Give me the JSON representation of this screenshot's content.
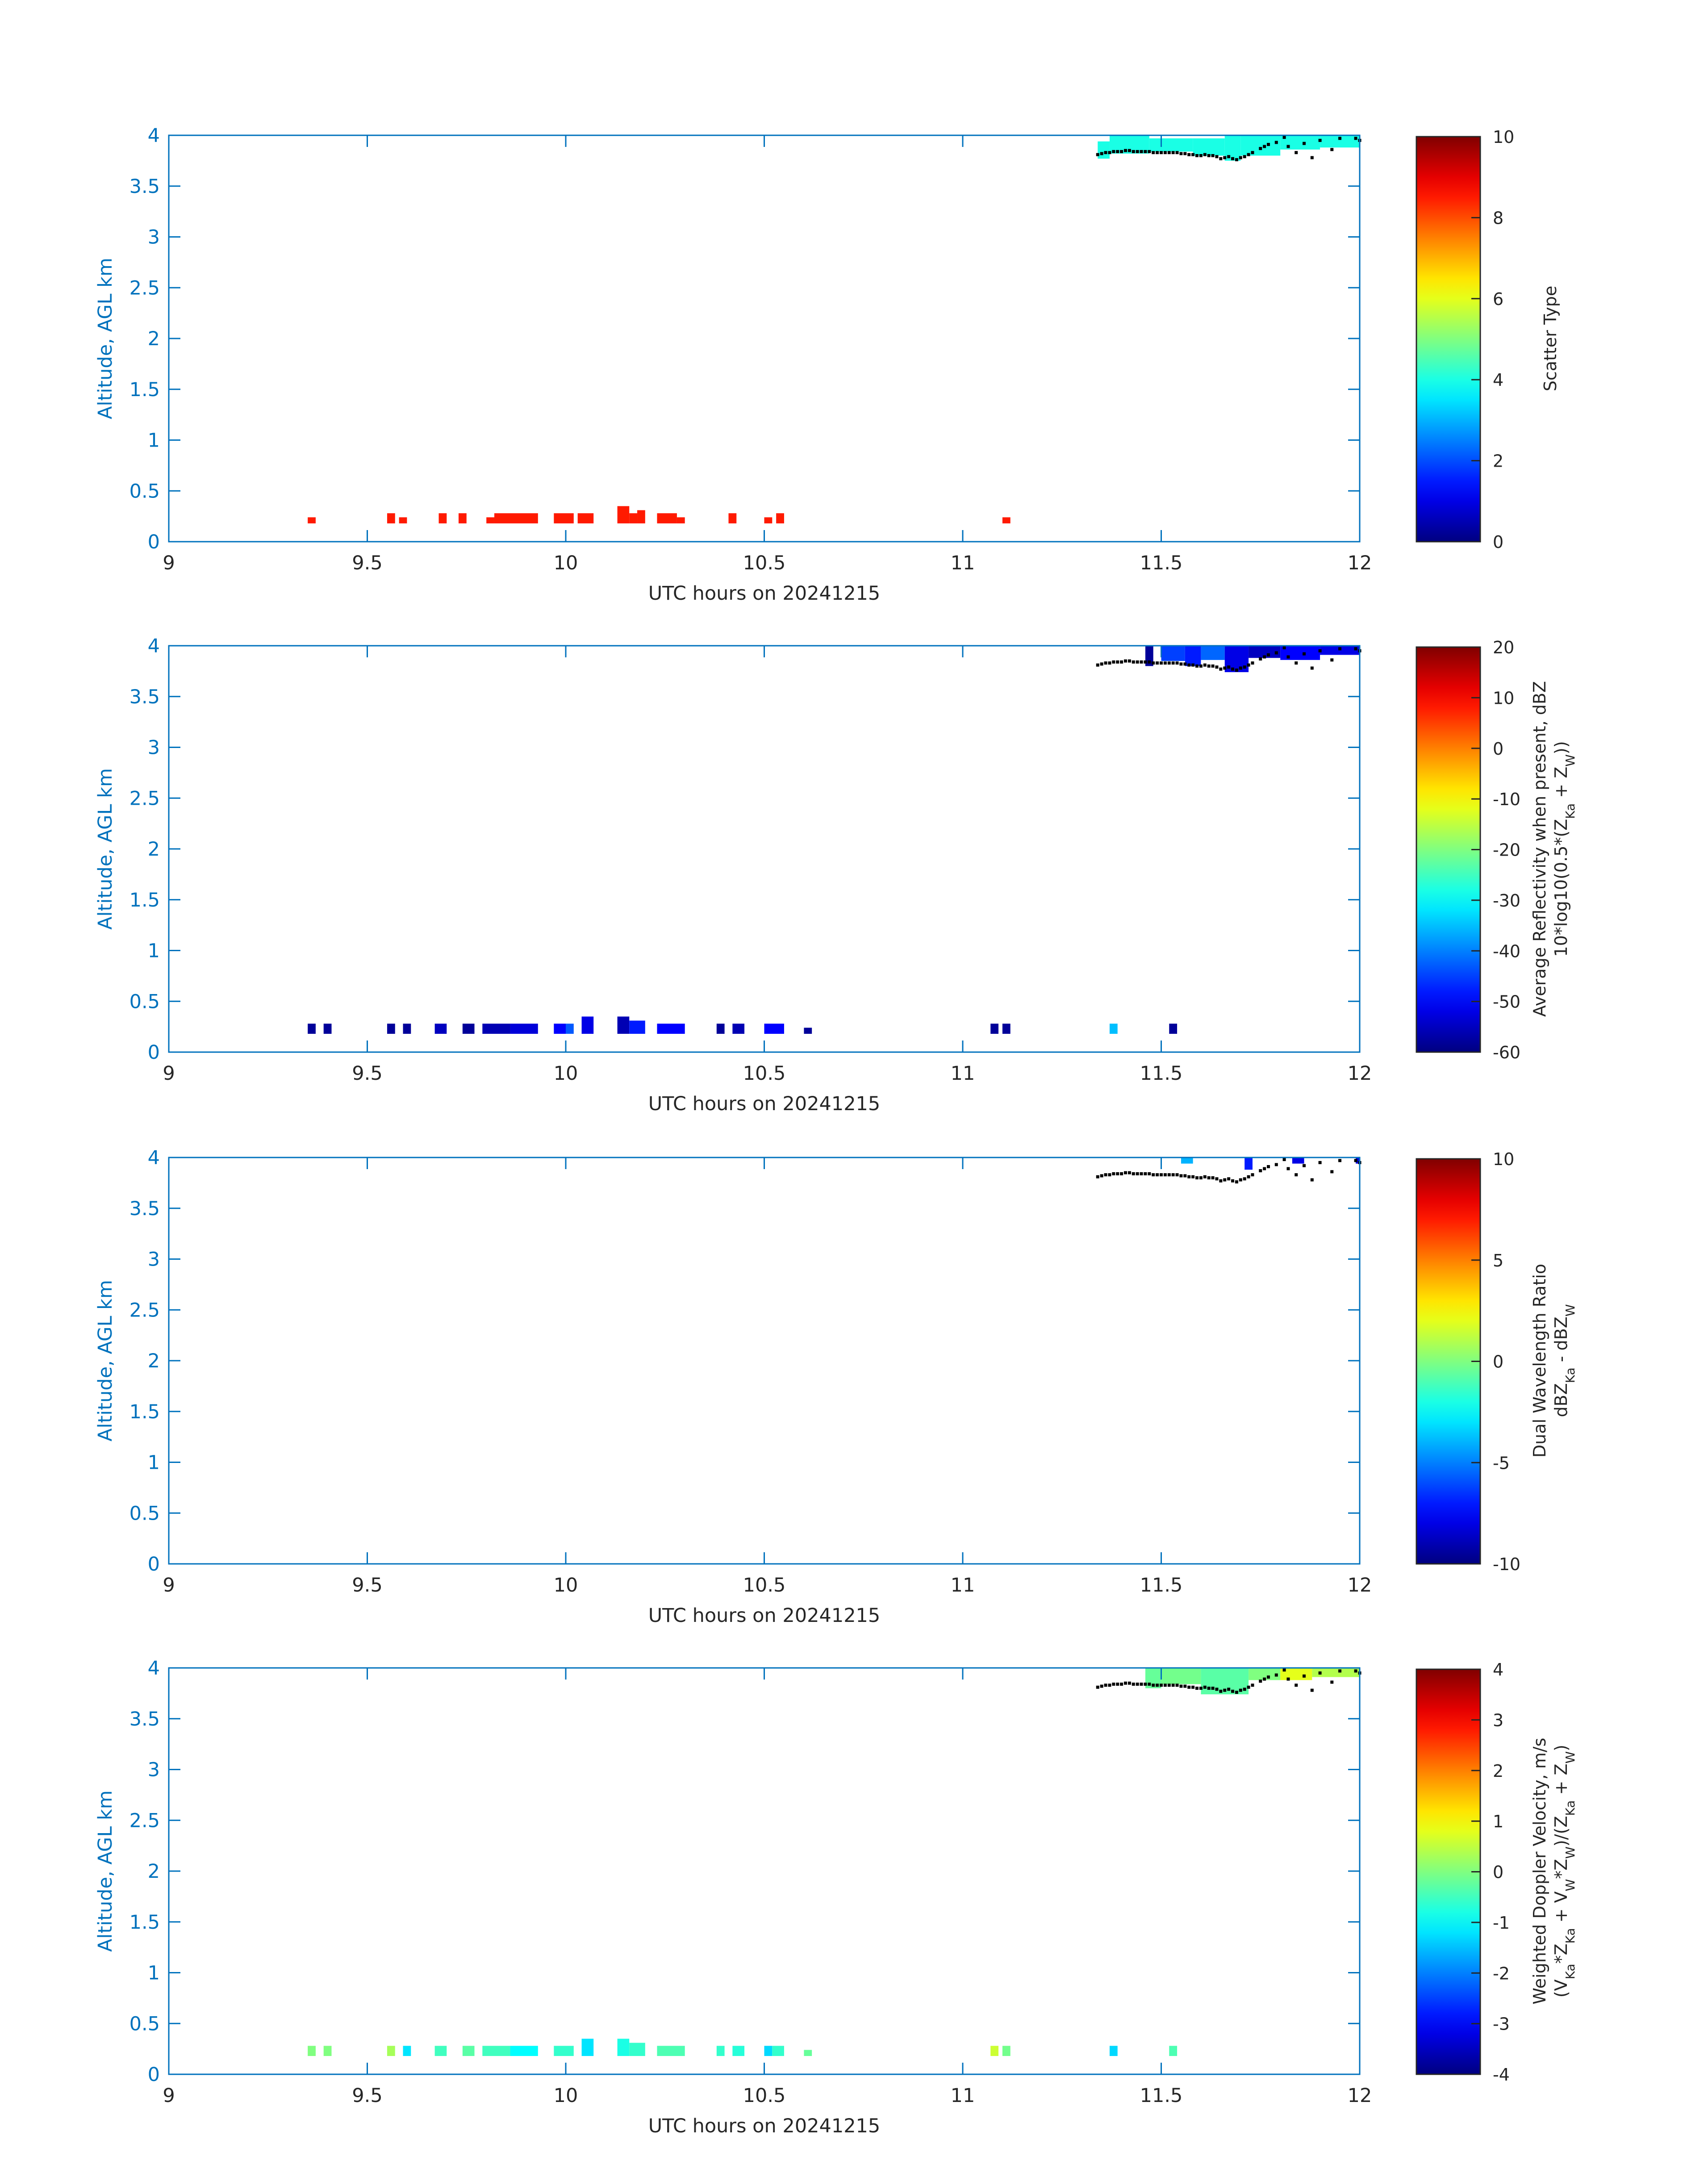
{
  "figure": {
    "date_label": "UTC hours on 20241215"
  },
  "colors": {
    "axis": "#0072BD",
    "text": "#262626",
    "marker": "#000000"
  },
  "chart_data": [
    {
      "type": "heatmap",
      "ylabel": "Altitude, AGL km",
      "xlabel": "UTC hours on 20241215",
      "xlim": [
        9,
        12
      ],
      "ylim": [
        0,
        4
      ],
      "xticks": [
        "9",
        "9.5",
        "10",
        "10.5",
        "11",
        "11.5",
        "12"
      ],
      "yticks": [
        "0",
        "0.5",
        "1",
        "1.5",
        "2",
        "2.5",
        "3",
        "3.5",
        "4"
      ],
      "colorbar": {
        "label": [
          "Scatter Type"
        ],
        "clim": [
          0,
          10
        ],
        "ticks": [
          "0",
          "2",
          "4",
          "6",
          "8",
          "10"
        ],
        "colormap": "jet"
      },
      "cells": [
        {
          "x0": 9.35,
          "x1": 9.37,
          "y0": 0.18,
          "y1": 0.24,
          "v": 8.5
        },
        {
          "x0": 9.55,
          "x1": 9.57,
          "y0": 0.18,
          "y1": 0.28,
          "v": 8.5
        },
        {
          "x0": 9.58,
          "x1": 9.6,
          "y0": 0.18,
          "y1": 0.24,
          "v": 8.5
        },
        {
          "x0": 9.68,
          "x1": 9.7,
          "y0": 0.18,
          "y1": 0.28,
          "v": 8.5
        },
        {
          "x0": 9.73,
          "x1": 9.75,
          "y0": 0.18,
          "y1": 0.28,
          "v": 8.5
        },
        {
          "x0": 9.8,
          "x1": 9.82,
          "y0": 0.18,
          "y1": 0.24,
          "v": 8.5
        },
        {
          "x0": 9.82,
          "x1": 9.93,
          "y0": 0.18,
          "y1": 0.28,
          "v": 8.5
        },
        {
          "x0": 9.97,
          "x1": 10.02,
          "y0": 0.18,
          "y1": 0.28,
          "v": 8.5
        },
        {
          "x0": 10.03,
          "x1": 10.07,
          "y0": 0.18,
          "y1": 0.28,
          "v": 8.5
        },
        {
          "x0": 10.13,
          "x1": 10.16,
          "y0": 0.18,
          "y1": 0.35,
          "v": 8.5
        },
        {
          "x0": 10.16,
          "x1": 10.18,
          "y0": 0.18,
          "y1": 0.28,
          "v": 8.5
        },
        {
          "x0": 10.18,
          "x1": 10.2,
          "y0": 0.18,
          "y1": 0.31,
          "v": 8.5
        },
        {
          "x0": 10.23,
          "x1": 10.28,
          "y0": 0.18,
          "y1": 0.28,
          "v": 8.5
        },
        {
          "x0": 10.28,
          "x1": 10.3,
          "y0": 0.18,
          "y1": 0.24,
          "v": 8.5
        },
        {
          "x0": 10.41,
          "x1": 10.43,
          "y0": 0.18,
          "y1": 0.28,
          "v": 8.5
        },
        {
          "x0": 10.5,
          "x1": 10.52,
          "y0": 0.18,
          "y1": 0.24,
          "v": 8.5
        },
        {
          "x0": 10.53,
          "x1": 10.55,
          "y0": 0.18,
          "y1": 0.28,
          "v": 8.5
        },
        {
          "x0": 11.1,
          "x1": 11.12,
          "y0": 0.18,
          "y1": 0.24,
          "v": 8.5
        },
        {
          "x0": 11.34,
          "x1": 11.37,
          "y0": 3.77,
          "y1": 3.94,
          "v": 4.0
        },
        {
          "x0": 11.37,
          "x1": 11.47,
          "y0": 3.82,
          "y1": 4.0,
          "v": 4.0
        },
        {
          "x0": 11.47,
          "x1": 11.58,
          "y0": 3.84,
          "y1": 3.97,
          "v": 4.0
        },
        {
          "x0": 11.58,
          "x1": 11.66,
          "y0": 3.8,
          "y1": 3.97,
          "v": 4.0
        },
        {
          "x0": 11.66,
          "x1": 11.7,
          "y0": 3.75,
          "y1": 4.0,
          "v": 4.0
        },
        {
          "x0": 11.7,
          "x1": 11.8,
          "y0": 3.8,
          "y1": 4.0,
          "v": 4.0
        },
        {
          "x0": 11.8,
          "x1": 11.9,
          "y0": 3.86,
          "y1": 4.0,
          "v": 4.0
        },
        {
          "x0": 11.9,
          "x1": 12.0,
          "y0": 3.88,
          "y1": 4.0,
          "v": 4.0
        }
      ]
    },
    {
      "type": "heatmap",
      "ylabel": "Altitude, AGL km",
      "xlabel": "UTC hours on 20241215",
      "xlim": [
        9,
        12
      ],
      "ylim": [
        0,
        4
      ],
      "xticks": [
        "9",
        "9.5",
        "10",
        "10.5",
        "11",
        "11.5",
        "12"
      ],
      "yticks": [
        "0",
        "0.5",
        "1",
        "1.5",
        "2",
        "2.5",
        "3",
        "3.5",
        "4"
      ],
      "colorbar": {
        "label": [
          "Average Reflectivity when present, dBZ",
          "10*log10(0.5*(Z_Ka + Z_W))"
        ],
        "clim": [
          -60,
          20
        ],
        "ticks": [
          "-60",
          "-50",
          "-40",
          "-30",
          "-20",
          "-10",
          "0",
          "10",
          "20"
        ],
        "colormap": "jet"
      },
      "cells": [
        {
          "x0": 9.35,
          "x1": 9.37,
          "y0": 0.18,
          "y1": 0.28,
          "v": -58
        },
        {
          "x0": 9.39,
          "x1": 9.41,
          "y0": 0.18,
          "y1": 0.28,
          "v": -58
        },
        {
          "x0": 9.55,
          "x1": 9.57,
          "y0": 0.18,
          "y1": 0.28,
          "v": -58
        },
        {
          "x0": 9.59,
          "x1": 9.61,
          "y0": 0.18,
          "y1": 0.28,
          "v": -58
        },
        {
          "x0": 9.67,
          "x1": 9.7,
          "y0": 0.18,
          "y1": 0.28,
          "v": -55
        },
        {
          "x0": 9.74,
          "x1": 9.77,
          "y0": 0.18,
          "y1": 0.28,
          "v": -58
        },
        {
          "x0": 9.79,
          "x1": 9.86,
          "y0": 0.18,
          "y1": 0.28,
          "v": -56
        },
        {
          "x0": 9.86,
          "x1": 9.93,
          "y0": 0.18,
          "y1": 0.28,
          "v": -53
        },
        {
          "x0": 9.97,
          "x1": 10.0,
          "y0": 0.18,
          "y1": 0.28,
          "v": -50
        },
        {
          "x0": 10.0,
          "x1": 10.02,
          "y0": 0.18,
          "y1": 0.28,
          "v": -43
        },
        {
          "x0": 10.04,
          "x1": 10.07,
          "y0": 0.18,
          "y1": 0.35,
          "v": -52
        },
        {
          "x0": 10.13,
          "x1": 10.16,
          "y0": 0.18,
          "y1": 0.35,
          "v": -56
        },
        {
          "x0": 10.16,
          "x1": 10.2,
          "y0": 0.18,
          "y1": 0.31,
          "v": -48
        },
        {
          "x0": 10.23,
          "x1": 10.3,
          "y0": 0.18,
          "y1": 0.28,
          "v": -50
        },
        {
          "x0": 10.38,
          "x1": 10.4,
          "y0": 0.18,
          "y1": 0.28,
          "v": -58
        },
        {
          "x0": 10.42,
          "x1": 10.45,
          "y0": 0.18,
          "y1": 0.28,
          "v": -56
        },
        {
          "x0": 10.5,
          "x1": 10.55,
          "y0": 0.18,
          "y1": 0.28,
          "v": -50
        },
        {
          "x0": 10.6,
          "x1": 10.62,
          "y0": 0.18,
          "y1": 0.24,
          "v": -58
        },
        {
          "x0": 11.07,
          "x1": 11.09,
          "y0": 0.18,
          "y1": 0.28,
          "v": -58
        },
        {
          "x0": 11.1,
          "x1": 11.12,
          "y0": 0.18,
          "y1": 0.28,
          "v": -58
        },
        {
          "x0": 11.37,
          "x1": 11.39,
          "y0": 0.18,
          "y1": 0.28,
          "v": -35
        },
        {
          "x0": 11.52,
          "x1": 11.54,
          "y0": 0.18,
          "y1": 0.28,
          "v": -58
        },
        {
          "x0": 11.46,
          "x1": 11.48,
          "y0": 3.8,
          "y1": 4.0,
          "v": -58
        },
        {
          "x0": 11.5,
          "x1": 11.56,
          "y0": 3.85,
          "y1": 4.0,
          "v": -45
        },
        {
          "x0": 11.56,
          "x1": 11.6,
          "y0": 3.8,
          "y1": 4.0,
          "v": -48
        },
        {
          "x0": 11.6,
          "x1": 11.66,
          "y0": 3.86,
          "y1": 4.0,
          "v": -42
        },
        {
          "x0": 11.66,
          "x1": 11.72,
          "y0": 3.74,
          "y1": 4.0,
          "v": -52
        },
        {
          "x0": 11.72,
          "x1": 11.8,
          "y0": 3.88,
          "y1": 4.0,
          "v": -55
        },
        {
          "x0": 11.8,
          "x1": 11.9,
          "y0": 3.86,
          "y1": 4.0,
          "v": -50
        },
        {
          "x0": 11.9,
          "x1": 12.0,
          "y0": 3.91,
          "y1": 4.0,
          "v": -52
        }
      ]
    },
    {
      "type": "heatmap",
      "ylabel": "Altitude, AGL km",
      "xlabel": "UTC hours on 20241215",
      "xlim": [
        9,
        12
      ],
      "ylim": [
        0,
        4
      ],
      "xticks": [
        "9",
        "9.5",
        "10",
        "10.5",
        "11",
        "11.5",
        "12"
      ],
      "yticks": [
        "0",
        "0.5",
        "1",
        "1.5",
        "2",
        "2.5",
        "3",
        "3.5",
        "4"
      ],
      "colorbar": {
        "label": [
          "Dual Wavelength Ratio",
          "dBZ_Ka - dBZ_W"
        ],
        "clim": [
          -10,
          10
        ],
        "ticks": [
          "-10",
          "-5",
          "0",
          "5",
          "10"
        ],
        "colormap": "jet"
      },
      "cells": [
        {
          "x0": 11.55,
          "x1": 11.58,
          "y0": 3.94,
          "y1": 4.0,
          "v": -4
        },
        {
          "x0": 11.71,
          "x1": 11.73,
          "y0": 3.88,
          "y1": 4.0,
          "v": -7
        },
        {
          "x0": 11.83,
          "x1": 11.86,
          "y0": 3.94,
          "y1": 4.0,
          "v": -8
        },
        {
          "x0": 11.99,
          "x1": 12.0,
          "y0": 3.94,
          "y1": 4.0,
          "v": -8
        }
      ]
    },
    {
      "type": "heatmap",
      "ylabel": "Altitude, AGL km",
      "xlabel": "UTC hours on 20241215",
      "xlim": [
        9,
        12
      ],
      "ylim": [
        0,
        4
      ],
      "xticks": [
        "9",
        "9.5",
        "10",
        "10.5",
        "11",
        "11.5",
        "12"
      ],
      "yticks": [
        "0",
        "0.5",
        "1",
        "1.5",
        "2",
        "2.5",
        "3",
        "3.5",
        "4"
      ],
      "colorbar": {
        "label": [
          "Weighted Doppler Velocity, m/s",
          "(V_Ka*Z_Ka + V_W*Z_W)/(Z_Ka + Z_W)"
        ],
        "clim": [
          -4,
          4
        ],
        "ticks": [
          "-4",
          "-3",
          "-2",
          "-1",
          "0",
          "1",
          "2",
          "3",
          "4"
        ],
        "colormap": "jet"
      },
      "cells": [
        {
          "x0": 9.35,
          "x1": 9.37,
          "y0": 0.18,
          "y1": 0.28,
          "v": 0.0
        },
        {
          "x0": 9.39,
          "x1": 9.41,
          "y0": 0.18,
          "y1": 0.28,
          "v": 0.0
        },
        {
          "x0": 9.55,
          "x1": 9.57,
          "y0": 0.18,
          "y1": 0.28,
          "v": 0.3
        },
        {
          "x0": 9.59,
          "x1": 9.61,
          "y0": 0.18,
          "y1": 0.28,
          "v": -1.2
        },
        {
          "x0": 9.67,
          "x1": 9.7,
          "y0": 0.18,
          "y1": 0.28,
          "v": -0.5
        },
        {
          "x0": 9.74,
          "x1": 9.77,
          "y0": 0.18,
          "y1": 0.28,
          "v": -0.3
        },
        {
          "x0": 9.79,
          "x1": 9.86,
          "y0": 0.18,
          "y1": 0.28,
          "v": -0.5
        },
        {
          "x0": 9.86,
          "x1": 9.93,
          "y0": 0.18,
          "y1": 0.28,
          "v": -1.0
        },
        {
          "x0": 9.97,
          "x1": 10.02,
          "y0": 0.18,
          "y1": 0.28,
          "v": -0.6
        },
        {
          "x0": 10.04,
          "x1": 10.07,
          "y0": 0.18,
          "y1": 0.35,
          "v": -1.2
        },
        {
          "x0": 10.13,
          "x1": 10.16,
          "y0": 0.18,
          "y1": 0.35,
          "v": -0.8
        },
        {
          "x0": 10.16,
          "x1": 10.2,
          "y0": 0.18,
          "y1": 0.31,
          "v": -0.6
        },
        {
          "x0": 10.23,
          "x1": 10.3,
          "y0": 0.18,
          "y1": 0.28,
          "v": -0.4
        },
        {
          "x0": 10.38,
          "x1": 10.4,
          "y0": 0.18,
          "y1": 0.28,
          "v": -0.6
        },
        {
          "x0": 10.42,
          "x1": 10.45,
          "y0": 0.18,
          "y1": 0.28,
          "v": -0.7
        },
        {
          "x0": 10.5,
          "x1": 10.52,
          "y0": 0.18,
          "y1": 0.28,
          "v": -1.3
        },
        {
          "x0": 10.52,
          "x1": 10.55,
          "y0": 0.18,
          "y1": 0.28,
          "v": -0.6
        },
        {
          "x0": 10.6,
          "x1": 10.62,
          "y0": 0.18,
          "y1": 0.24,
          "v": -0.2
        },
        {
          "x0": 11.07,
          "x1": 11.09,
          "y0": 0.18,
          "y1": 0.28,
          "v": 0.6
        },
        {
          "x0": 11.1,
          "x1": 11.12,
          "y0": 0.18,
          "y1": 0.28,
          "v": -0.1
        },
        {
          "x0": 11.37,
          "x1": 11.39,
          "y0": 0.18,
          "y1": 0.28,
          "v": -1.3
        },
        {
          "x0": 11.52,
          "x1": 11.54,
          "y0": 0.18,
          "y1": 0.28,
          "v": -0.4
        },
        {
          "x0": 11.46,
          "x1": 11.5,
          "y0": 3.8,
          "y1": 4.0,
          "v": -0.2
        },
        {
          "x0": 11.5,
          "x1": 11.6,
          "y0": 3.84,
          "y1": 4.0,
          "v": -0.1
        },
        {
          "x0": 11.6,
          "x1": 11.72,
          "y0": 3.74,
          "y1": 4.0,
          "v": -0.3
        },
        {
          "x0": 11.72,
          "x1": 11.8,
          "y0": 3.88,
          "y1": 4.0,
          "v": 0.0
        },
        {
          "x0": 11.8,
          "x1": 11.88,
          "y0": 3.88,
          "y1": 4.0,
          "v": 0.8
        },
        {
          "x0": 11.88,
          "x1": 12.0,
          "y0": 3.91,
          "y1": 4.0,
          "v": 0.4
        }
      ]
    }
  ],
  "markers": {
    "x": [
      11.34,
      11.35,
      11.36,
      11.37,
      11.38,
      11.39,
      11.4,
      11.41,
      11.42,
      11.43,
      11.44,
      11.45,
      11.46,
      11.47,
      11.48,
      11.49,
      11.5,
      11.51,
      11.52,
      11.53,
      11.54,
      11.55,
      11.56,
      11.57,
      11.58,
      11.59,
      11.6,
      11.61,
      11.62,
      11.63,
      11.64,
      11.65,
      11.66,
      11.67,
      11.68,
      11.69,
      11.7,
      11.71,
      11.72,
      11.73,
      11.75,
      11.76,
      11.77,
      11.79,
      11.81,
      11.82,
      11.84,
      11.86,
      11.88,
      11.9,
      11.93,
      11.95,
      11.99,
      12.0
    ],
    "y": [
      3.81,
      3.82,
      3.83,
      3.83,
      3.84,
      3.84,
      3.84,
      3.85,
      3.85,
      3.84,
      3.84,
      3.84,
      3.84,
      3.84,
      3.83,
      3.83,
      3.83,
      3.83,
      3.83,
      3.83,
      3.83,
      3.82,
      3.82,
      3.81,
      3.81,
      3.8,
      3.8,
      3.81,
      3.8,
      3.8,
      3.79,
      3.77,
      3.78,
      3.79,
      3.77,
      3.76,
      3.78,
      3.79,
      3.81,
      3.83,
      3.87,
      3.89,
      3.91,
      3.93,
      3.98,
      3.89,
      3.83,
      3.92,
      3.78,
      3.95,
      3.86,
      3.97,
      3.97,
      3.95
    ]
  }
}
